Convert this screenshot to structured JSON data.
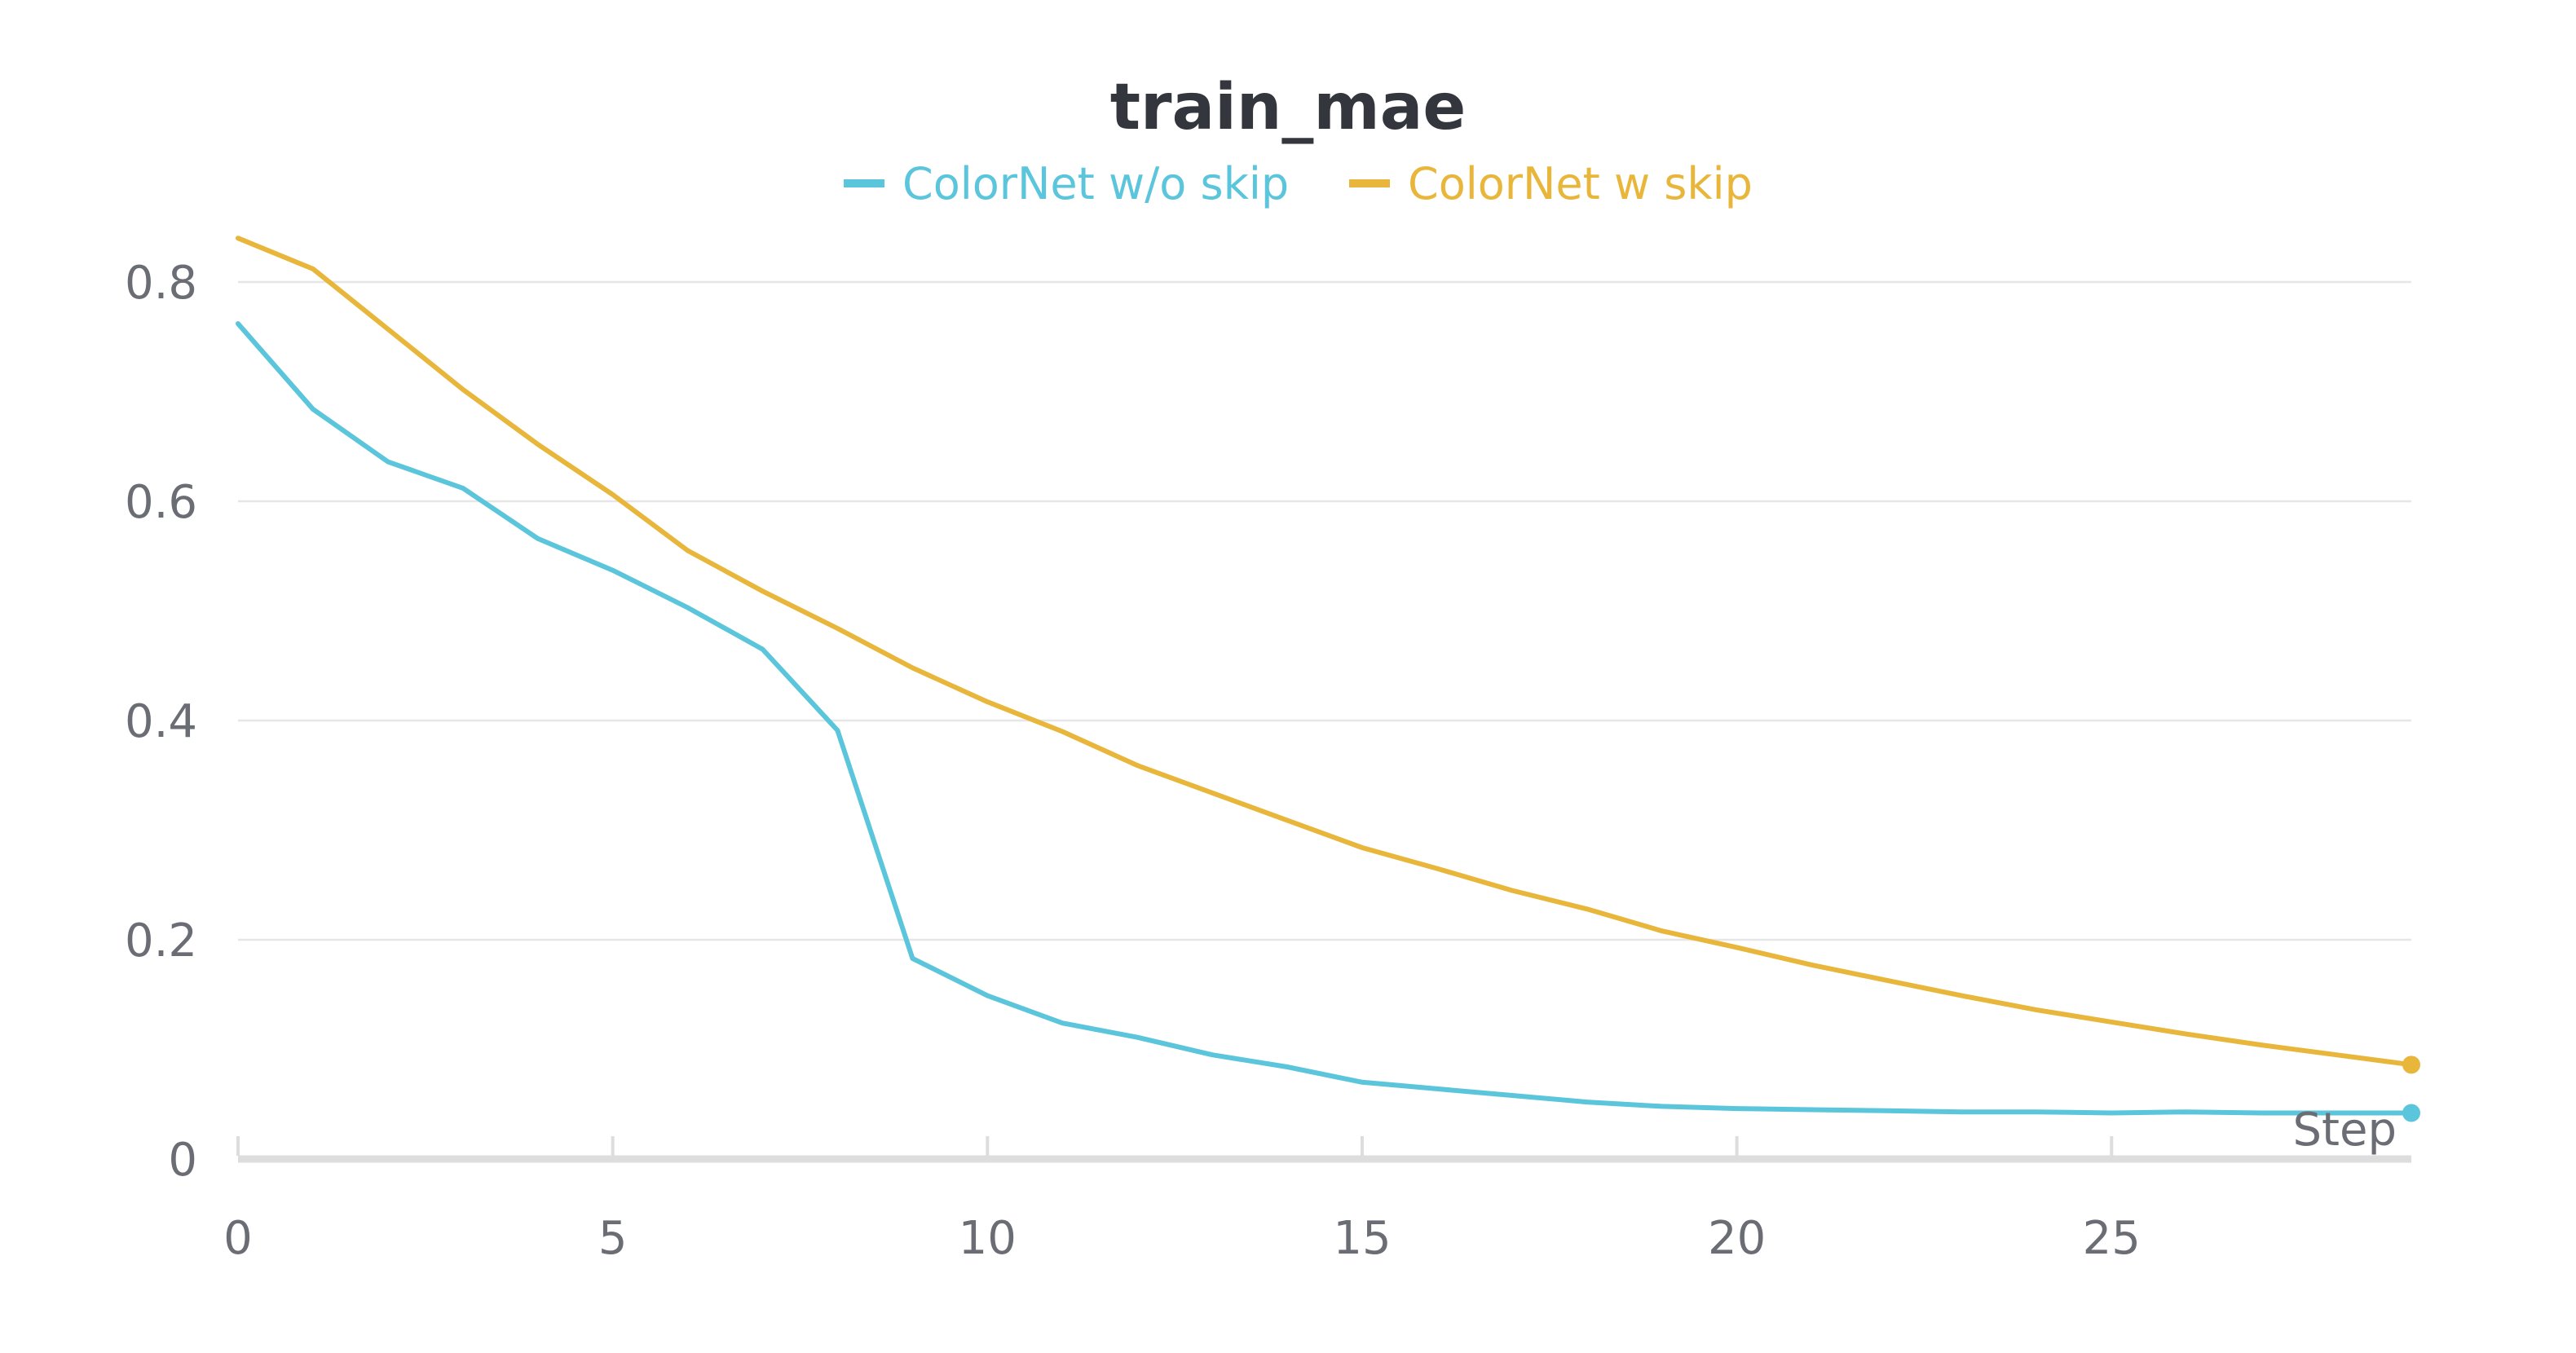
{
  "chart_data": {
    "type": "line",
    "title": "train_mae",
    "xlabel": "Step",
    "ylabel": "",
    "xlim": [
      0,
      29
    ],
    "ylim": [
      0,
      0.8
    ],
    "xticks": [
      0,
      5,
      10,
      15,
      20,
      25
    ],
    "yticks": [
      0,
      0.2,
      0.4,
      0.6,
      0.8
    ],
    "x": [
      0,
      1,
      2,
      3,
      4,
      5,
      6,
      7,
      8,
      9,
      10,
      11,
      12,
      13,
      14,
      15,
      16,
      17,
      18,
      19,
      20,
      21,
      22,
      23,
      24,
      25,
      26,
      27,
      28,
      29
    ],
    "grid": true,
    "legend_position": "top-center",
    "series": [
      {
        "name": "ColorNet w/o skip",
        "color": "#5bc5db",
        "values": [
          0.762,
          0.684,
          0.636,
          0.612,
          0.566,
          0.537,
          0.503,
          0.465,
          0.391,
          0.183,
          0.149,
          0.124,
          0.111,
          0.095,
          0.084,
          0.07,
          0.064,
          0.058,
          0.052,
          0.048,
          0.046,
          0.045,
          0.044,
          0.043,
          0.043,
          0.042,
          0.043,
          0.042,
          0.042,
          0.042
        ]
      },
      {
        "name": "ColorNet w skip",
        "color": "#e8b63a",
        "values": [
          0.84,
          0.812,
          0.757,
          0.702,
          0.652,
          0.606,
          0.555,
          0.518,
          0.484,
          0.448,
          0.417,
          0.39,
          0.359,
          0.334,
          0.309,
          0.284,
          0.265,
          0.245,
          0.228,
          0.208,
          0.193,
          0.177,
          0.163,
          0.149,
          0.136,
          0.125,
          0.114,
          0.104,
          0.095,
          0.086
        ]
      }
    ]
  }
}
